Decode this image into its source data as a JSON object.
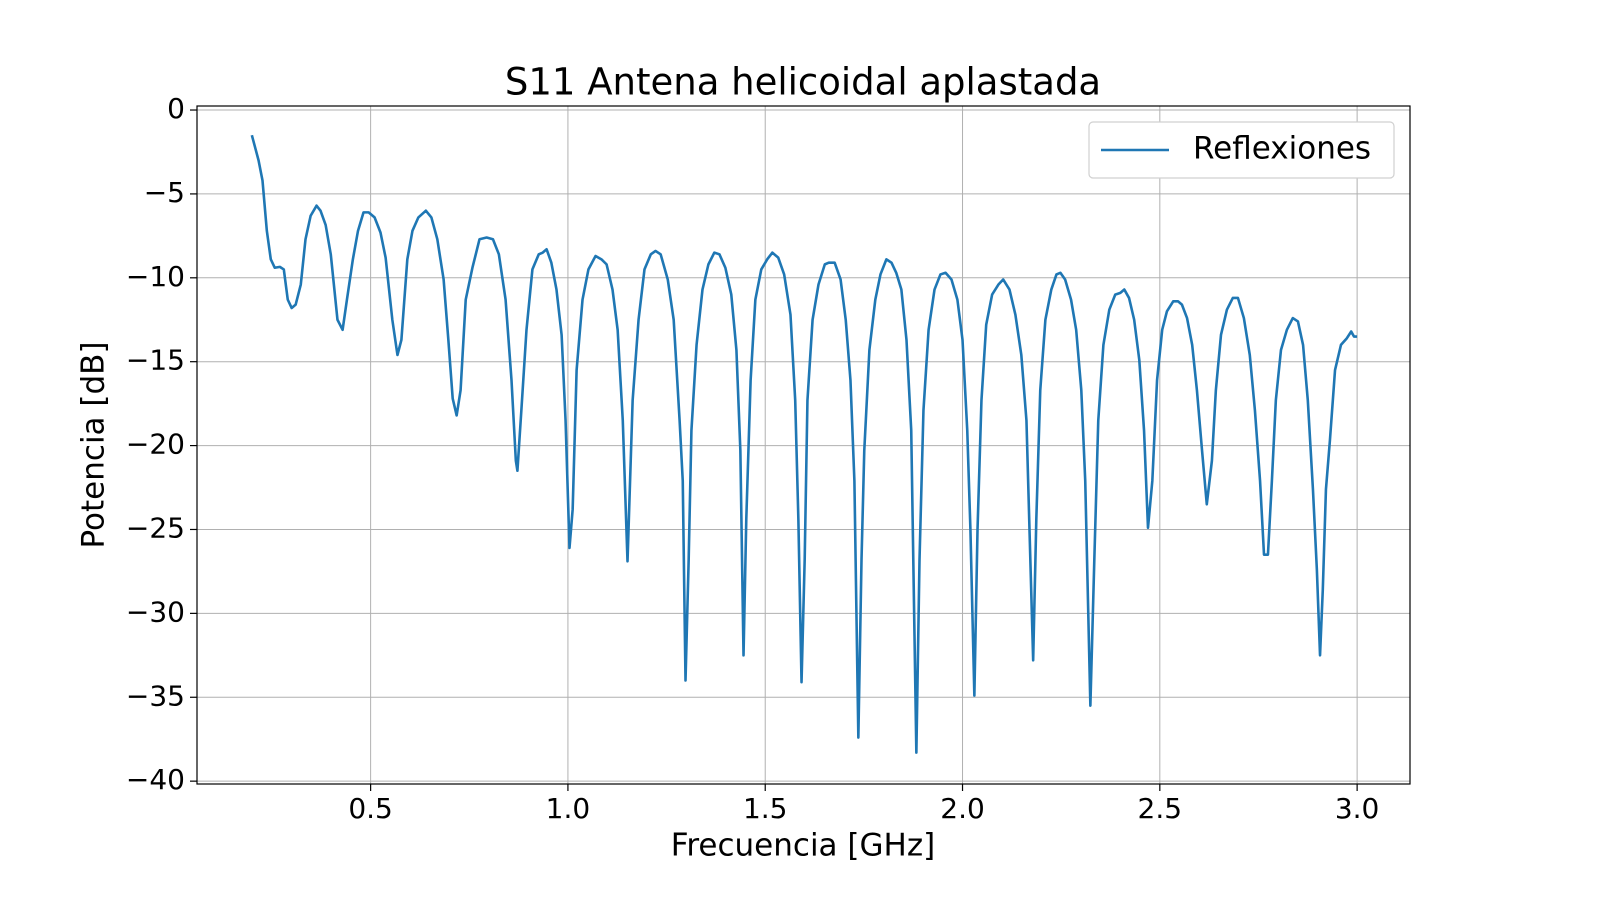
{
  "chart_data": {
    "type": "line",
    "title": "S11 Antena helicoidal aplastada",
    "xlabel": "Frecuencia [GHz]",
    "ylabel": "Potencia [dB]",
    "xlim": [
      0.06,
      3.134
    ],
    "ylim": [
      -40.17,
      0.24
    ],
    "xticks": [
      0.5,
      {
        "value": 1.0,
        "label": "1.0"
      },
      1.5,
      {
        "value": 2.0,
        "label": "2.0"
      },
      2.5,
      {
        "value": 3.0,
        "label": "3.0"
      }
    ],
    "yticks": [
      0,
      {
        "value": -5,
        "label": "−5"
      },
      {
        "value": -10,
        "label": "−10"
      },
      {
        "value": -15,
        "label": "−15"
      },
      {
        "value": -20,
        "label": "−20"
      },
      {
        "value": -25,
        "label": "−25"
      },
      {
        "value": -30,
        "label": "−30"
      },
      {
        "value": -35,
        "label": "−35"
      },
      {
        "value": -40,
        "label": "−40"
      }
    ],
    "grid": true,
    "legend": "upper right",
    "x": [
      0.199,
      0.216,
      0.226,
      0.237,
      0.247,
      0.257,
      0.27,
      0.28,
      0.29,
      0.3,
      0.31,
      0.323,
      0.335,
      0.348,
      0.363,
      0.373,
      0.386,
      0.399,
      0.416,
      0.429,
      0.44,
      0.455,
      0.468,
      0.482,
      0.495,
      0.51,
      0.525,
      0.538,
      0.555,
      0.568,
      0.578,
      0.593,
      0.606,
      0.621,
      0.64,
      0.654,
      0.669,
      0.685,
      0.697,
      0.708,
      0.718,
      0.728,
      0.741,
      0.758,
      0.776,
      0.794,
      0.81,
      0.825,
      0.842,
      0.857,
      0.868,
      0.872,
      0.882,
      0.895,
      0.91,
      0.926,
      0.936,
      0.946,
      0.958,
      0.971,
      0.984,
      0.994,
      1.004,
      1.012,
      1.022,
      1.037,
      1.052,
      1.07,
      1.085,
      1.098,
      1.113,
      1.126,
      1.139,
      1.151,
      1.164,
      1.179,
      1.194,
      1.21,
      1.222,
      1.235,
      1.253,
      1.268,
      1.283,
      1.291,
      1.298,
      1.306,
      1.313,
      1.326,
      1.341,
      1.356,
      1.371,
      1.384,
      1.399,
      1.414,
      1.427,
      1.437,
      1.445,
      1.452,
      1.463,
      1.475,
      1.49,
      1.505,
      1.518,
      1.533,
      1.548,
      1.564,
      1.576,
      1.584,
      1.592,
      1.6,
      1.607,
      1.62,
      1.635,
      1.651,
      1.661,
      1.676,
      1.691,
      1.704,
      1.716,
      1.726,
      1.736,
      1.744,
      1.751,
      1.764,
      1.779,
      1.792,
      1.807,
      1.82,
      1.832,
      1.845,
      1.858,
      1.87,
      1.883,
      1.891,
      1.901,
      1.914,
      1.929,
      1.944,
      1.957,
      1.972,
      1.987,
      2.0,
      2.012,
      2.02,
      2.03,
      2.038,
      2.048,
      2.06,
      2.075,
      2.091,
      2.103,
      2.119,
      2.134,
      2.149,
      2.162,
      2.169,
      2.179,
      2.187,
      2.197,
      2.21,
      2.225,
      2.238,
      2.248,
      2.26,
      2.275,
      2.288,
      2.301,
      2.311,
      2.324,
      2.334,
      2.344,
      2.357,
      2.372,
      2.387,
      2.4,
      2.41,
      2.422,
      2.435,
      2.448,
      2.46,
      2.47,
      2.481,
      2.493,
      2.506,
      2.518,
      2.534,
      2.546,
      2.556,
      2.569,
      2.582,
      2.594,
      2.607,
      2.619,
      2.632,
      2.642,
      2.655,
      2.67,
      2.685,
      2.698,
      2.713,
      2.728,
      2.741,
      2.754,
      2.764,
      2.774,
      2.784,
      2.794,
      2.807,
      2.822,
      2.837,
      2.85,
      2.863,
      2.875,
      2.888,
      2.898,
      2.906,
      2.913,
      2.921,
      2.931,
      2.944,
      2.959,
      2.974,
      2.985,
      2.992,
      3.0
    ],
    "series": [
      {
        "name": "Reflexiones",
        "color": "#1f77b4",
        "values": [
          -1.5,
          -3.0,
          -4.2,
          -7.2,
          -8.9,
          -9.4,
          -9.35,
          -9.5,
          -11.3,
          -11.8,
          -11.6,
          -10.4,
          -7.7,
          -6.3,
          -5.7,
          -6.0,
          -6.85,
          -8.6,
          -12.5,
          -13.1,
          -11.3,
          -8.9,
          -7.2,
          -6.1,
          -6.1,
          -6.4,
          -7.3,
          -8.8,
          -12.5,
          -14.6,
          -13.7,
          -8.9,
          -7.2,
          -6.4,
          -6.0,
          -6.4,
          -7.7,
          -10.1,
          -13.7,
          -17.2,
          -18.2,
          -16.7,
          -11.3,
          -9.4,
          -7.7,
          -7.6,
          -7.7,
          -8.6,
          -11.3,
          -16.1,
          -20.9,
          -21.5,
          -17.9,
          -13.1,
          -9.5,
          -8.6,
          -8.5,
          -8.3,
          -9.1,
          -10.7,
          -13.4,
          -18.5,
          -26.1,
          -23.8,
          -15.5,
          -11.3,
          -9.5,
          -8.7,
          -8.9,
          -9.2,
          -10.7,
          -13.1,
          -18.5,
          -26.9,
          -17.3,
          -12.5,
          -9.5,
          -8.6,
          -8.4,
          -8.6,
          -10.1,
          -12.5,
          -18.5,
          -22.1,
          -34.0,
          -26.8,
          -19.1,
          -14.0,
          -10.7,
          -9.2,
          -8.5,
          -8.6,
          -9.4,
          -11.0,
          -14.3,
          -20.3,
          -32.5,
          -24.4,
          -16.1,
          -11.3,
          -9.5,
          -8.9,
          -8.5,
          -8.8,
          -9.8,
          -12.2,
          -17.3,
          -24.4,
          -34.1,
          -26.8,
          -17.3,
          -12.5,
          -10.4,
          -9.2,
          -9.1,
          -9.1,
          -10.1,
          -12.5,
          -16.1,
          -22.1,
          -37.4,
          -26.8,
          -20.3,
          -14.3,
          -11.3,
          -9.8,
          -8.9,
          -9.1,
          -9.7,
          -10.7,
          -13.7,
          -19.1,
          -38.3,
          -26.8,
          -17.9,
          -13.1,
          -10.7,
          -9.8,
          -9.7,
          -10.1,
          -11.3,
          -13.7,
          -19.1,
          -25.0,
          -34.9,
          -25.0,
          -17.3,
          -12.8,
          -11.0,
          -10.4,
          -10.1,
          -10.7,
          -12.2,
          -14.6,
          -18.5,
          -24.4,
          -32.8,
          -24.4,
          -16.7,
          -12.5,
          -10.7,
          -9.8,
          -9.7,
          -10.1,
          -11.3,
          -13.1,
          -16.7,
          -22.1,
          -35.5,
          -26.8,
          -18.5,
          -14.0,
          -11.9,
          -11.0,
          -10.9,
          -10.7,
          -11.2,
          -12.5,
          -14.9,
          -19.1,
          -24.9,
          -22.1,
          -16.1,
          -13.1,
          -12.0,
          -11.4,
          -11.4,
          -11.6,
          -12.4,
          -14.0,
          -16.7,
          -20.3,
          -23.5,
          -20.9,
          -16.7,
          -13.4,
          -11.9,
          -11.2,
          -11.2,
          -12.4,
          -14.6,
          -17.9,
          -22.1,
          -26.5,
          -26.5,
          -22.1,
          -17.3,
          -14.3,
          -13.1,
          -12.4,
          -12.6,
          -14.0,
          -17.3,
          -22.6,
          -27.4,
          -32.5,
          -28.6,
          -22.6,
          -19.7,
          -15.5,
          -14.0,
          -13.6,
          -13.2,
          -13.5,
          -13.5
        ]
      }
    ]
  }
}
